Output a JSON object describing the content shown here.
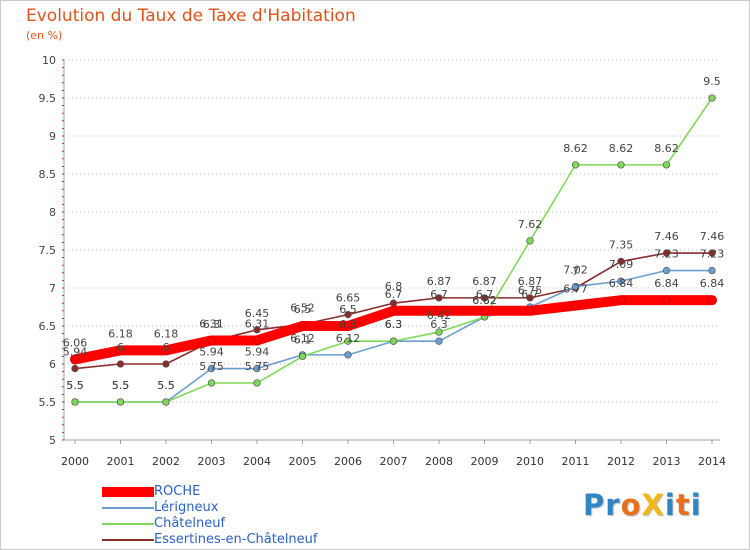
{
  "title": "Evolution du Taux de Taxe d'Habitation",
  "subtitle": "(en %)",
  "logo": {
    "text": "ProXiti",
    "letters": [
      {
        "ch": "P",
        "color": "#2f86c7"
      },
      {
        "ch": "r",
        "color": "#2f86c7"
      },
      {
        "ch": "o",
        "color": "#e86f1e"
      },
      {
        "ch": "X",
        "color": "#f2b71c"
      },
      {
        "ch": "i",
        "color": "#2f86c7"
      },
      {
        "ch": "t",
        "color": "#e86f1e"
      },
      {
        "ch": "i",
        "color": "#2f86c7"
      }
    ]
  },
  "chart_data": {
    "type": "line",
    "x": [
      "2000",
      "2001",
      "2002",
      "2003",
      "2004",
      "2005",
      "2006",
      "2007",
      "2008",
      "2009",
      "2010",
      "2011",
      "2012",
      "2013",
      "2014"
    ],
    "yticks": [
      "5",
      "5.5",
      "6",
      "6.5",
      "7",
      "7.5",
      "8",
      "8.5",
      "9",
      "9.5",
      "10"
    ],
    "ylim": [
      5,
      10
    ],
    "grid": "horizontal dotted",
    "legend_position": "bottom-left",
    "series": [
      {
        "name": "ROCHE",
        "color": "#ff0000",
        "values": [
          6.06,
          6.18,
          6.18,
          6.31,
          6.31,
          6.5,
          6.5,
          6.7,
          6.7,
          6.7,
          6.7,
          6.77,
          6.84,
          6.84,
          6.84
        ],
        "labels": [
          "6.06",
          "6.18",
          "6.18",
          "6.31",
          "6.31",
          "6.5",
          "6.5",
          "6.7",
          "6.7",
          "6.7",
          "6.7",
          "6.77",
          "6.84",
          "6.84",
          "6.84"
        ]
      },
      {
        "name": "Lérigneux",
        "color": "#6b9fd4",
        "values": [
          5.5,
          5.5,
          5.5,
          5.94,
          5.94,
          6.12,
          6.12,
          6.3,
          6.3,
          6.62,
          6.75,
          7.02,
          7.09,
          7.23,
          7.23
        ],
        "labels": [
          "5.5",
          "5.5",
          "5.5",
          "5.94",
          "5.94",
          "6.12",
          "6.12",
          "6.3",
          "6.3",
          "6.62",
          "6.75",
          "7.02",
          "7.09",
          "7.23",
          "7.23"
        ]
      },
      {
        "name": "Châtelneuf",
        "color": "#7ed957",
        "values": [
          5.5,
          5.5,
          5.5,
          5.75,
          5.75,
          6.1,
          6.3,
          6.3,
          6.42,
          6.62,
          7.62,
          8.62,
          8.62,
          8.62,
          9.5
        ],
        "labels": [
          "5.5",
          "5.5",
          "5.5",
          "5.75",
          "5.75",
          "6.1",
          "6.3",
          "6.3",
          "6.42",
          "6.62",
          "7.62",
          "8.62",
          "8.62",
          "8.62",
          "9.5"
        ]
      },
      {
        "name": "Essertines-en-Châtelneuf",
        "color": "#8b2c2c",
        "values": [
          5.94,
          6.0,
          6.0,
          6.3,
          6.45,
          6.52,
          6.65,
          6.8,
          6.87,
          6.87,
          6.87,
          7.0,
          7.35,
          7.46,
          7.46
        ],
        "labels": [
          "5.94",
          "6",
          "6",
          "6.3",
          "6.45",
          "6.52",
          "6.65",
          "6.8",
          "6.87",
          "6.87",
          "6.87",
          "7",
          "7.35",
          "7.46",
          "7.46"
        ]
      }
    ]
  }
}
